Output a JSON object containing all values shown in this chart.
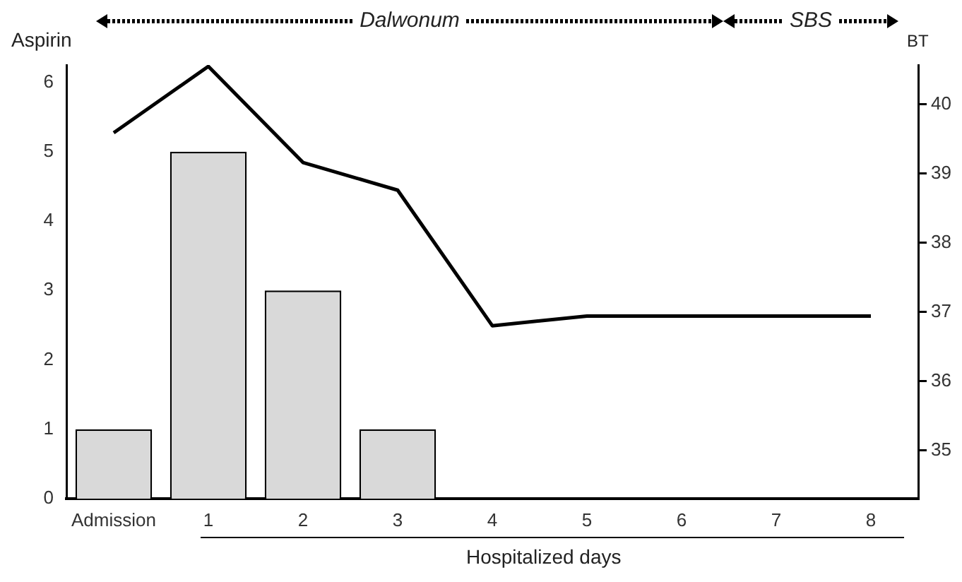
{
  "chart_data": {
    "type": "bar",
    "xlabel": "Hospitalized days",
    "ylabel": "Aspirin",
    "y2label": "BT",
    "categories": [
      "Admission",
      "1",
      "2",
      "3",
      "4",
      "5",
      "6",
      "7",
      "8"
    ],
    "series": [
      {
        "color": "#d9d9d9",
        "values": [
          1,
          5,
          3,
          1,
          null,
          null,
          null,
          null,
          null
        ]
      },
      {
        "type": "line",
        "axis": "y2",
        "color": "#000000",
        "marker": "none",
        "line_style": "solid",
        "values": [
          39.59,
          40.55,
          39.16,
          38.76,
          36.8,
          36.94,
          36.94,
          36.94,
          36.94
        ]
      }
    ],
    "ylim": [
      0,
      6.25
    ],
    "yticks": [
      0,
      1,
      2,
      3,
      4,
      5,
      6
    ],
    "y2lim": [
      34.3,
      40.57
    ],
    "y2ticks": [
      35,
      36,
      37,
      38,
      39,
      40
    ],
    "annotations": [
      "Dalwonum",
      "SBS"
    ],
    "grid": false,
    "legend": false
  }
}
